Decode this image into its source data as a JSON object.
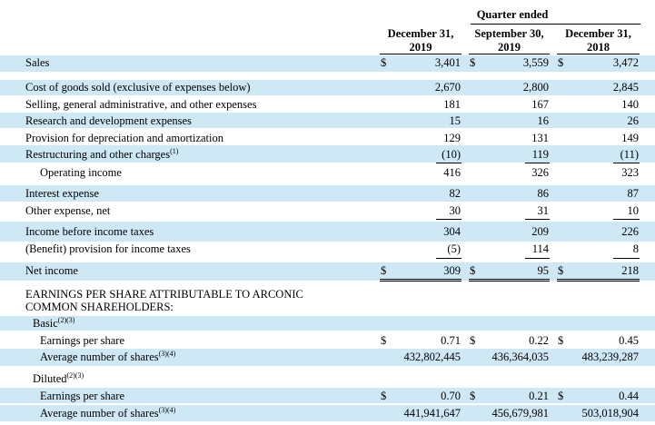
{
  "header": {
    "group_label": "Quarter ended",
    "columns": [
      {
        "line1": "December 31,",
        "line2": "2019"
      },
      {
        "line1": "September 30,",
        "line2": "2019"
      },
      {
        "line1": "December 31,",
        "line2": "2018"
      }
    ]
  },
  "currency": "$",
  "rows": {
    "sales": {
      "label": "Sales",
      "v": [
        "3,401",
        "3,559",
        "3,472"
      ]
    },
    "cogs": {
      "label": "Cost of goods sold (exclusive of expenses below)",
      "v": [
        "2,670",
        "2,800",
        "2,845"
      ]
    },
    "sga": {
      "label": "Selling, general administrative, and other expenses",
      "v": [
        "181",
        "167",
        "140"
      ]
    },
    "rnd": {
      "label": "Research and development expenses",
      "v": [
        "15",
        "16",
        "26"
      ]
    },
    "dep": {
      "label": "Provision for depreciation and amortization",
      "v": [
        "129",
        "131",
        "149"
      ]
    },
    "restr": {
      "label": "Restructuring and other charges",
      "sup": "(1)",
      "v": [
        "(10)",
        "119",
        "(11)"
      ]
    },
    "opinc": {
      "label": "Operating income",
      "v": [
        "416",
        "326",
        "323"
      ]
    },
    "interest": {
      "label": "Interest expense",
      "v": [
        "82",
        "86",
        "87"
      ]
    },
    "other": {
      "label": "Other expense, net",
      "v": [
        "30",
        "31",
        "10"
      ]
    },
    "ibt": {
      "label": "Income before income taxes",
      "v": [
        "304",
        "209",
        "226"
      ]
    },
    "tax": {
      "label": "(Benefit) provision for income taxes",
      "v": [
        "(5)",
        "114",
        "8"
      ]
    },
    "net": {
      "label": "Net income",
      "v": [
        "309",
        "95",
        "218"
      ]
    }
  },
  "eps": {
    "heading_line1": "EARNINGS PER SHARE ATTRIBUTABLE TO ARCONIC",
    "heading_line2": "COMMON SHAREHOLDERS:",
    "basic_label": "Basic",
    "basic_sup": "(2)(3)",
    "basic_eps": {
      "label": "Earnings per share",
      "v": [
        "0.71",
        "0.22",
        "0.45"
      ]
    },
    "basic_shares": {
      "label": "Average number of shares",
      "sup": "(3)(4)",
      "v": [
        "432,802,445",
        "436,364,035",
        "483,239,287"
      ]
    },
    "diluted_label": "Diluted",
    "diluted_sup": "(2)(3)",
    "diluted_eps": {
      "label": "Earnings per share",
      "v": [
        "0.70",
        "0.21",
        "0.44"
      ]
    },
    "diluted_shares": {
      "label": "Average number of shares",
      "sup": "(3)(4)",
      "v": [
        "441,941,647",
        "456,679,981",
        "503,018,904"
      ]
    }
  }
}
